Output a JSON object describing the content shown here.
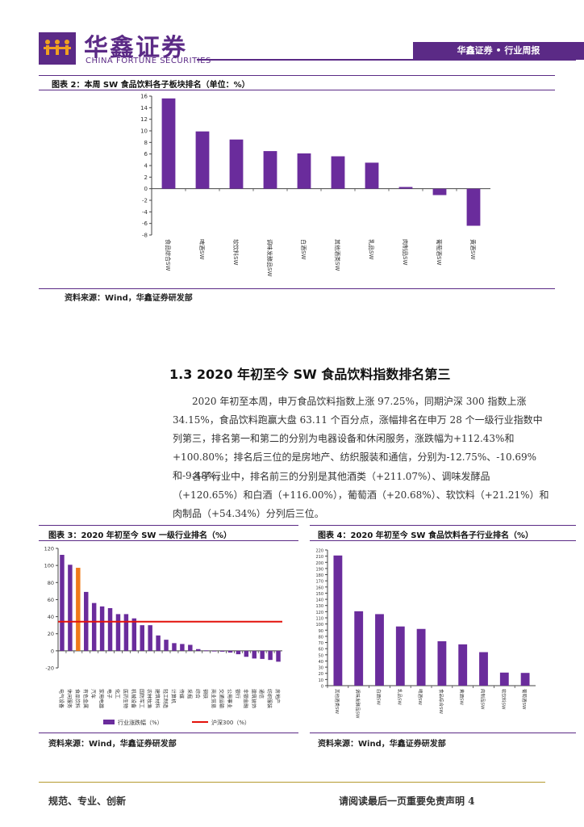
{
  "header": {
    "brand_cn": "华鑫证券",
    "brand_en": "CHINA FORTUNE SECURITIES",
    "report_tag": "华鑫证券 • 行业周报"
  },
  "figure2": {
    "title": "图表 2：本周 SW 食品饮料各子板块排名（单位：%）",
    "source": "资料来源：Wind，华鑫证券研发部"
  },
  "section": {
    "title": "1.3 2020 年初至今 SW 食品饮料指数排名第三",
    "para1": "2020 年初至本周，申万食品饮料指数上涨 97.25%，同期沪深 300 指数上涨 34.15%，食品饮料跑赢大盘 63.11 个百分点，涨幅排名在申万 28 个一级行业指数中列第三，排名第一和第二的分别为电器设备和休闲服务，涨跌幅为+112.43%和+100.80%；排名后三位的是房地产、纺织服装和通信，分别为-12.75%、-10.69%和-9.48%。",
    "para2": "各子行业中，排名前三的分别是其他酒类（+211.07%）、调味发酵品（+120.65%）和白酒（+116.00%），葡萄酒（+20.68%）、软饮料（+21.21%）和肉制品（+54.34%）分列后三位。"
  },
  "figure3": {
    "title": "图表 3：2020 年初至今 SW 一级行业排名（%）",
    "source": "资料来源：Wind，华鑫证券研发部"
  },
  "figure4": {
    "title": "图表 4：2020 年初至今 SW 食品饮料各子行业排名（%）",
    "source": "资料来源：Wind，华鑫证券研发部"
  },
  "footer": {
    "left": "规范、专业、创新",
    "right": "请阅读最后一页重要免责声明 4"
  },
  "chart_data": [
    {
      "id": "fig2",
      "type": "bar",
      "categories": [
        "食品综合SW",
        "啤酒SW",
        "软饮料SW",
        "调味发酵品SW",
        "白酒SW",
        "其他酒类SW",
        "乳品SW",
        "肉制品SW",
        "葡萄酒SW",
        "黄酒SW"
      ],
      "values": [
        15.6,
        9.9,
        8.5,
        6.5,
        6.1,
        5.6,
        4.5,
        0.3,
        -1.1,
        -6.4
      ],
      "ylim": [
        -8,
        16
      ],
      "yticks": [
        -8,
        -6,
        -4,
        -2,
        0,
        2,
        4,
        6,
        8,
        10,
        12,
        14,
        16
      ],
      "color": "#6a2c9c"
    },
    {
      "id": "fig3",
      "type": "bar",
      "categories": [
        "电气设备",
        "休闲服务",
        "食品饮料",
        "有色金属",
        "汽车",
        "家用电器",
        "电子",
        "化工",
        "医药生物",
        "机械设备",
        "国防军工",
        "农林牧渔",
        "建筑材料",
        "轻工制造",
        "计算机",
        "传媒",
        "采掘",
        "综合",
        "钢铁",
        "商业贸易",
        "交通运输",
        "公用事业",
        "银行",
        "非银金融",
        "建筑装饰",
        "通信",
        "纺织服装",
        "房地产"
      ],
      "values": [
        112.43,
        100.8,
        97.25,
        69,
        56,
        52,
        50,
        43,
        43,
        38,
        30,
        30,
        18,
        13,
        9,
        8,
        7,
        2,
        0.5,
        -0.5,
        -1,
        -2,
        -4,
        -7,
        -9,
        -9.48,
        -10.69,
        -12.75
      ],
      "highlight_index": 2,
      "benchmark": {
        "name": "沪深300（%）",
        "value": 34.15,
        "color": "#e3120b"
      },
      "series_name": "行业涨跌幅（%）",
      "ylim": [
        -20,
        120
      ],
      "yticks": [
        -20,
        0,
        20,
        40,
        60,
        80,
        100,
        120
      ],
      "color": "#6a2c9c",
      "highlight_color": "#f07a1a",
      "legend": "bottom"
    },
    {
      "id": "fig4",
      "type": "bar",
      "categories": [
        "其他酒类SW",
        "调味发酵品SW",
        "白酒SW",
        "乳品SW",
        "啤酒SW",
        "食品综合SW",
        "黄酒SW",
        "肉制品SW",
        "软饮料SW",
        "葡萄酒SW"
      ],
      "values": [
        211.07,
        120.65,
        116.0,
        96,
        92,
        72,
        67,
        54.34,
        21.21,
        20.68
      ],
      "ylim": [
        0,
        220
      ],
      "yticks": [
        0,
        10,
        20,
        30,
        40,
        50,
        60,
        70,
        80,
        90,
        100,
        110,
        120,
        130,
        140,
        150,
        160,
        170,
        180,
        190,
        200,
        210,
        220
      ],
      "color": "#6a2c9c"
    }
  ]
}
